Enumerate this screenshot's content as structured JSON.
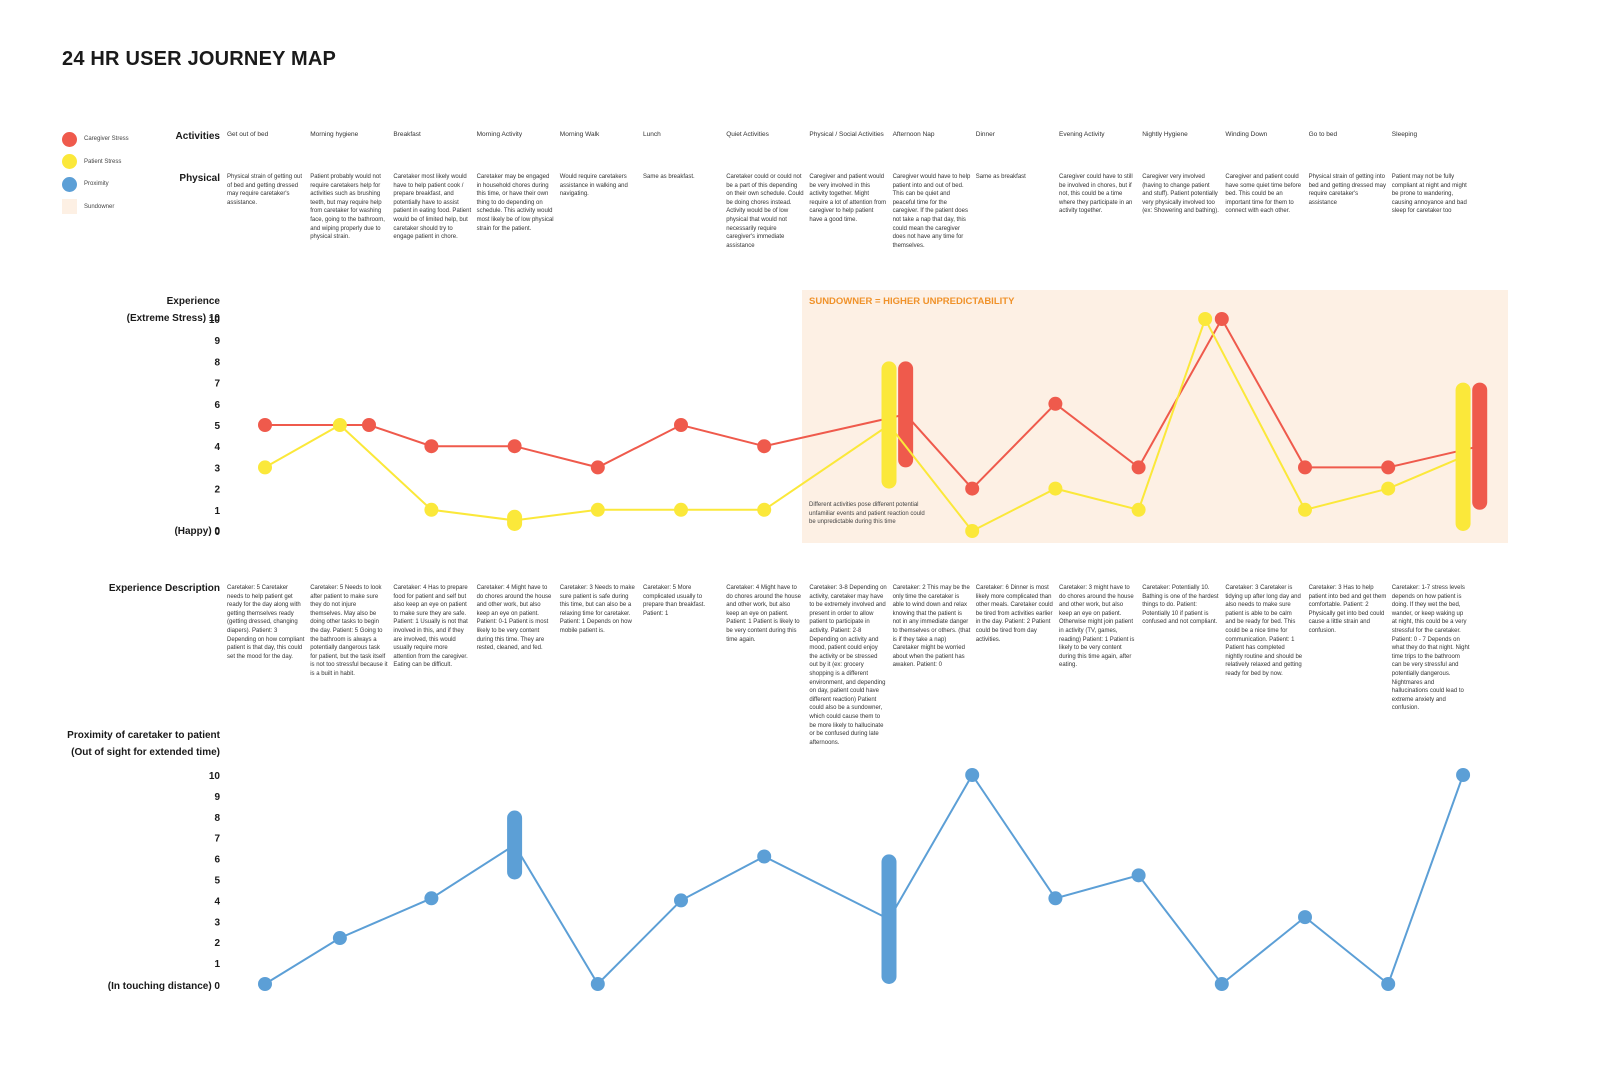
{
  "title": "24 HR USER JOURNEY MAP",
  "legend": [
    {
      "label": "Caregiver Stress",
      "color": "#ef5a4c",
      "kind": "dot"
    },
    {
      "label": "Patient Stress",
      "color": "#fbe83a",
      "kind": "dot"
    },
    {
      "label": "Proximity",
      "color": "#5c9fd6",
      "kind": "dot"
    },
    {
      "label": "Sundowner",
      "color": "#fdf0e4",
      "kind": "swatch"
    }
  ],
  "labels": {
    "activities": "Activities",
    "physical": "Physical",
    "experience_1": "Experience",
    "experience_2": "(Extreme Stress) 10",
    "experience_happy": "(Happy) 0",
    "experience_description": "Experience Description",
    "proximity_1": "Proximity of caretaker to patient",
    "proximity_2": "(Out of sight for extended time)",
    "proximity_touch": "(In touching distance) 0"
  },
  "sundowner": {
    "title": "SUNDOWNER = HIGHER UNPREDICTABILITY",
    "note": "Different activities pose different potential unfamiliar events and patient reaction could be unpredictable during this time"
  },
  "columns": [
    {
      "activity": "Get out of bed",
      "physical": "Physical strain of getting out of bed and getting dressed may require caretaker's assistance.",
      "description": "Caretaker: 5 Caretaker needs to help patient get ready for the day along with getting themselves ready (getting dressed, changing diapers). Patient: 3 Depending on how compliant patient is that day, this could set the mood for the day."
    },
    {
      "activity": "Morning hygiene",
      "physical": "Patient probably would not require caretakers help for activities such as brushing teeth, but may require help from caretaker for washing face, going to the bathroom, and wiping properly due to physical strain.",
      "description": "Caretaker: 5 Needs to look after patient to make sure they do not injure themselves. May also be doing other tasks to begin the day. Patient: 5 Going to the bathroom is always a potentially dangerous task for patient, but the task itself is not too stressful because it is a built in habit."
    },
    {
      "activity": "Breakfast",
      "physical": "Caretaker most likely would have to help patient cook / prepare breakfast, and potentially have to assist patient in eating food. Patient would be of limited help, but caretaker should try to engage patient in chore.",
      "description": "Caretaker: 4 Has to prepare food for patient and self but also keep an eye on patient to make sure they are safe. Patient: 1 Usually is not that involved in this, and if they are involved, this would usually require more attention from the caregiver. Eating can be difficult."
    },
    {
      "activity": "Morning Activity",
      "physical": "Caretaker may be engaged in household chores during this time, or have their own thing to do depending on schedule. This activity would most likely be of low physical strain for the patient.",
      "description": "Caretaker: 4 Might have to do chores around the house and other work, but also keep an eye on patient. Patient: 0-1 Patient is most likely to be very content during this time. They are rested, cleaned, and fed."
    },
    {
      "activity": "Morning Walk",
      "physical": "Would require caretakers assistance in walking and navigating.",
      "description": "Caretaker: 3 Needs to make sure patient is safe during this time, but can also be a relaxing time for caretaker. Patient: 1 Depends on how mobile patient is."
    },
    {
      "activity": "Lunch",
      "physical": "Same as breakfast.",
      "description": "Caretaker: 5 More complicated usually to prepare than breakfast. Patient: 1"
    },
    {
      "activity": "Quiet Activities",
      "physical": "Caretaker could or could not be a part of this depending on their own schedule. Could be doing chores instead. Activity would be of low physical that would not necessarily require caregiver's immediate assistance",
      "description": "Caretaker: 4 Might have to do chores around the house and other work, but also keep an eye on patient. Patient: 1 Patient is likely to be very content during this time again."
    },
    {
      "activity": "Physical / Social Activities",
      "physical": "Caregiver and patient would be very involved in this activity together. Might require a lot of attention from caregiver to help patient have a good time.",
      "description": "Caretaker: 3-8 Depending on activity, caretaker may have to be extremely involved and present in order to allow patient to participate in activity. Patient: 2-8 Depending on activity and mood, patient could enjoy the activity or be stressed out by it (ex: grocery shopping is a different environment, and depending on day, patient could have different reaction) Patient could also be a sundowner, which could cause them to be more likely to hallucinate or be confused during late afternoons."
    },
    {
      "activity": "Afternoon Nap",
      "physical": "Caregiver would have to help patient into and out of bed. This can be quiet and peaceful time for the caregiver. If the patient does not take a nap that day, this could mean the caregiver does not have any time for themselves.",
      "description": "Caretaker: 2 This may be the only time the caretaker is able to wind down and relax knowing that the patient is not in any immediate danger to themselves or others. (that is if they take a nap) Caretaker might be worried about when the patient has awaken. Patient: 0"
    },
    {
      "activity": "Dinner",
      "physical": "Same as breakfast",
      "description": "Caretaker: 6 Dinner is most likely more complicated than other meals. Caretaker could be tired from activities earlier in the day. Patient: 2 Patient could be tired from day activities."
    },
    {
      "activity": "Evening Activity",
      "physical": "Caregiver could have to still be involved in chores, but if not, this could be a time where they participate in an activity together.",
      "description": "Caretaker: 3 might have to do chores around the house and other work, but also keep an eye on patient. Otherwise might join patient in activity (TV, games, reading) Patient: 1 Patient is likely to be very content during this time again, after eating."
    },
    {
      "activity": "Nightly Hygiene",
      "physical": "Caregiver very involved (having to change patient and stuff). Patient potentially very physically involved too (ex: Showering and bathing).",
      "description": "Caretaker: Potentially 10. Bathing is one of the hardest things to do. Patient: Potentially 10 if patient is confused and not compliant."
    },
    {
      "activity": "Winding Down",
      "physical": "Caregiver and patient could have some quiet time before bed. This could be an important time for them to connect with each other.",
      "description": "Caretaker: 3 Caretaker is tidying up after long day and also needs to make sure patient is able to be calm and be ready for bed. This could be a nice time for communication. Patient: 1 Patient has completed nightly routine and should be relatively relaxed and getting ready for bed by now."
    },
    {
      "activity": "Go to bed",
      "physical": "Physical strain of getting into bed and getting dressed may require caretaker's assistance",
      "description": "Caretaker: 3 Has to help patient into bed and get them comfortable. Patient: 2 Physically get into bed could cause a little strain and confusion."
    },
    {
      "activity": "Sleeping",
      "physical": "Patient may not be fully compliant at night and might be prone to wandering, causing annoyance and bad sleep for caretaker too",
      "description": "Caretaker: 1-7 stress levels depends on how patient is doing. If they wet the bed, wander, or keep waking up at night, this could be a very stressful for the caretaker. Patient: 0 - 7 Depends on what they do that night. Night time trips to the bathroom can be very stressful and potentially dangerous. Nightmares and hallucinations could lead to extreme anxiety and confusion."
    }
  ],
  "chart_data": [
    {
      "type": "line",
      "name": "experience",
      "categories": [
        "Get out of bed",
        "Morning hygiene",
        "Breakfast",
        "Morning Activity",
        "Morning Walk",
        "Lunch",
        "Quiet Activities",
        "Physical / Social Activities",
        "Afternoon Nap",
        "Dinner",
        "Evening Activity",
        "Nightly Hygiene",
        "Winding Down",
        "Go to bed",
        "Sleeping"
      ],
      "ylim": [
        0,
        10
      ],
      "yticks": [
        "10",
        "9",
        "8",
        "7",
        "6",
        "5",
        "4",
        "3",
        "2",
        "1",
        "0"
      ],
      "series": [
        {
          "name": "Caregiver Stress",
          "color": "#ef5a4c",
          "points": [
            {
              "col": 0,
              "value": 5
            },
            {
              "col": 1.25,
              "value": 5
            },
            {
              "col": 2,
              "value": 4
            },
            {
              "col": 3,
              "value": 4
            },
            {
              "col": 4,
              "value": 3
            },
            {
              "col": 5,
              "value": 5
            },
            {
              "col": 6,
              "value": 4
            },
            {
              "col": 7.7,
              "range": [
                3,
                8
              ]
            },
            {
              "col": 8.5,
              "value": 2
            },
            {
              "col": 9.5,
              "value": 6
            },
            {
              "col": 10.5,
              "value": 3
            },
            {
              "col": 11.5,
              "value": 10
            },
            {
              "col": 12.5,
              "value": 3
            },
            {
              "col": 13.5,
              "value": 3
            },
            {
              "col": 14.6,
              "range": [
                1,
                7
              ]
            }
          ]
        },
        {
          "name": "Patient Stress",
          "color": "#fbe83a",
          "points": [
            {
              "col": 0,
              "value": 3
            },
            {
              "col": 0.9,
              "value": 5
            },
            {
              "col": 2,
              "value": 1
            },
            {
              "col": 3,
              "range": [
                0,
                1
              ]
            },
            {
              "col": 4,
              "value": 1
            },
            {
              "col": 5,
              "value": 1
            },
            {
              "col": 6,
              "value": 1
            },
            {
              "col": 7.5,
              "range": [
                2,
                8
              ]
            },
            {
              "col": 8.5,
              "value": 0
            },
            {
              "col": 9.5,
              "value": 2
            },
            {
              "col": 10.5,
              "value": 1
            },
            {
              "col": 11.3,
              "value": 10
            },
            {
              "col": 12.5,
              "value": 1
            },
            {
              "col": 13.5,
              "value": 2
            },
            {
              "col": 14.4,
              "range": [
                0,
                7
              ]
            }
          ]
        }
      ]
    },
    {
      "type": "line",
      "name": "proximity",
      "categories": [
        "Get out of bed",
        "Morning hygiene",
        "Breakfast",
        "Morning Activity",
        "Morning Walk",
        "Lunch",
        "Quiet Activities",
        "Physical / Social Activities",
        "Afternoon Nap",
        "Dinner",
        "Evening Activity",
        "Nightly Hygiene",
        "Winding Down",
        "Go to bed",
        "Sleeping"
      ],
      "ylim": [
        0,
        10
      ],
      "yticks": [
        "10",
        "9",
        "8",
        "7",
        "6",
        "5",
        "4",
        "3",
        "2",
        "1"
      ],
      "series": [
        {
          "name": "Proximity",
          "color": "#5c9fd6",
          "points": [
            {
              "col": 0,
              "value": 0
            },
            {
              "col": 0.9,
              "value": 2.2
            },
            {
              "col": 2,
              "value": 4.1
            },
            {
              "col": 3,
              "range": [
                5,
                8.3
              ]
            },
            {
              "col": 4,
              "value": 0
            },
            {
              "col": 5,
              "value": 4
            },
            {
              "col": 6,
              "value": 6.1
            },
            {
              "col": 7.5,
              "range": [
                0,
                6.2
              ]
            },
            {
              "col": 8.5,
              "value": 10
            },
            {
              "col": 9.5,
              "value": 4.1
            },
            {
              "col": 10.5,
              "value": 5.2
            },
            {
              "col": 11.5,
              "value": 0
            },
            {
              "col": 12.5,
              "value": 3.2
            },
            {
              "col": 13.5,
              "value": 0
            },
            {
              "col": 14.4,
              "value": 10
            }
          ]
        }
      ]
    }
  ]
}
